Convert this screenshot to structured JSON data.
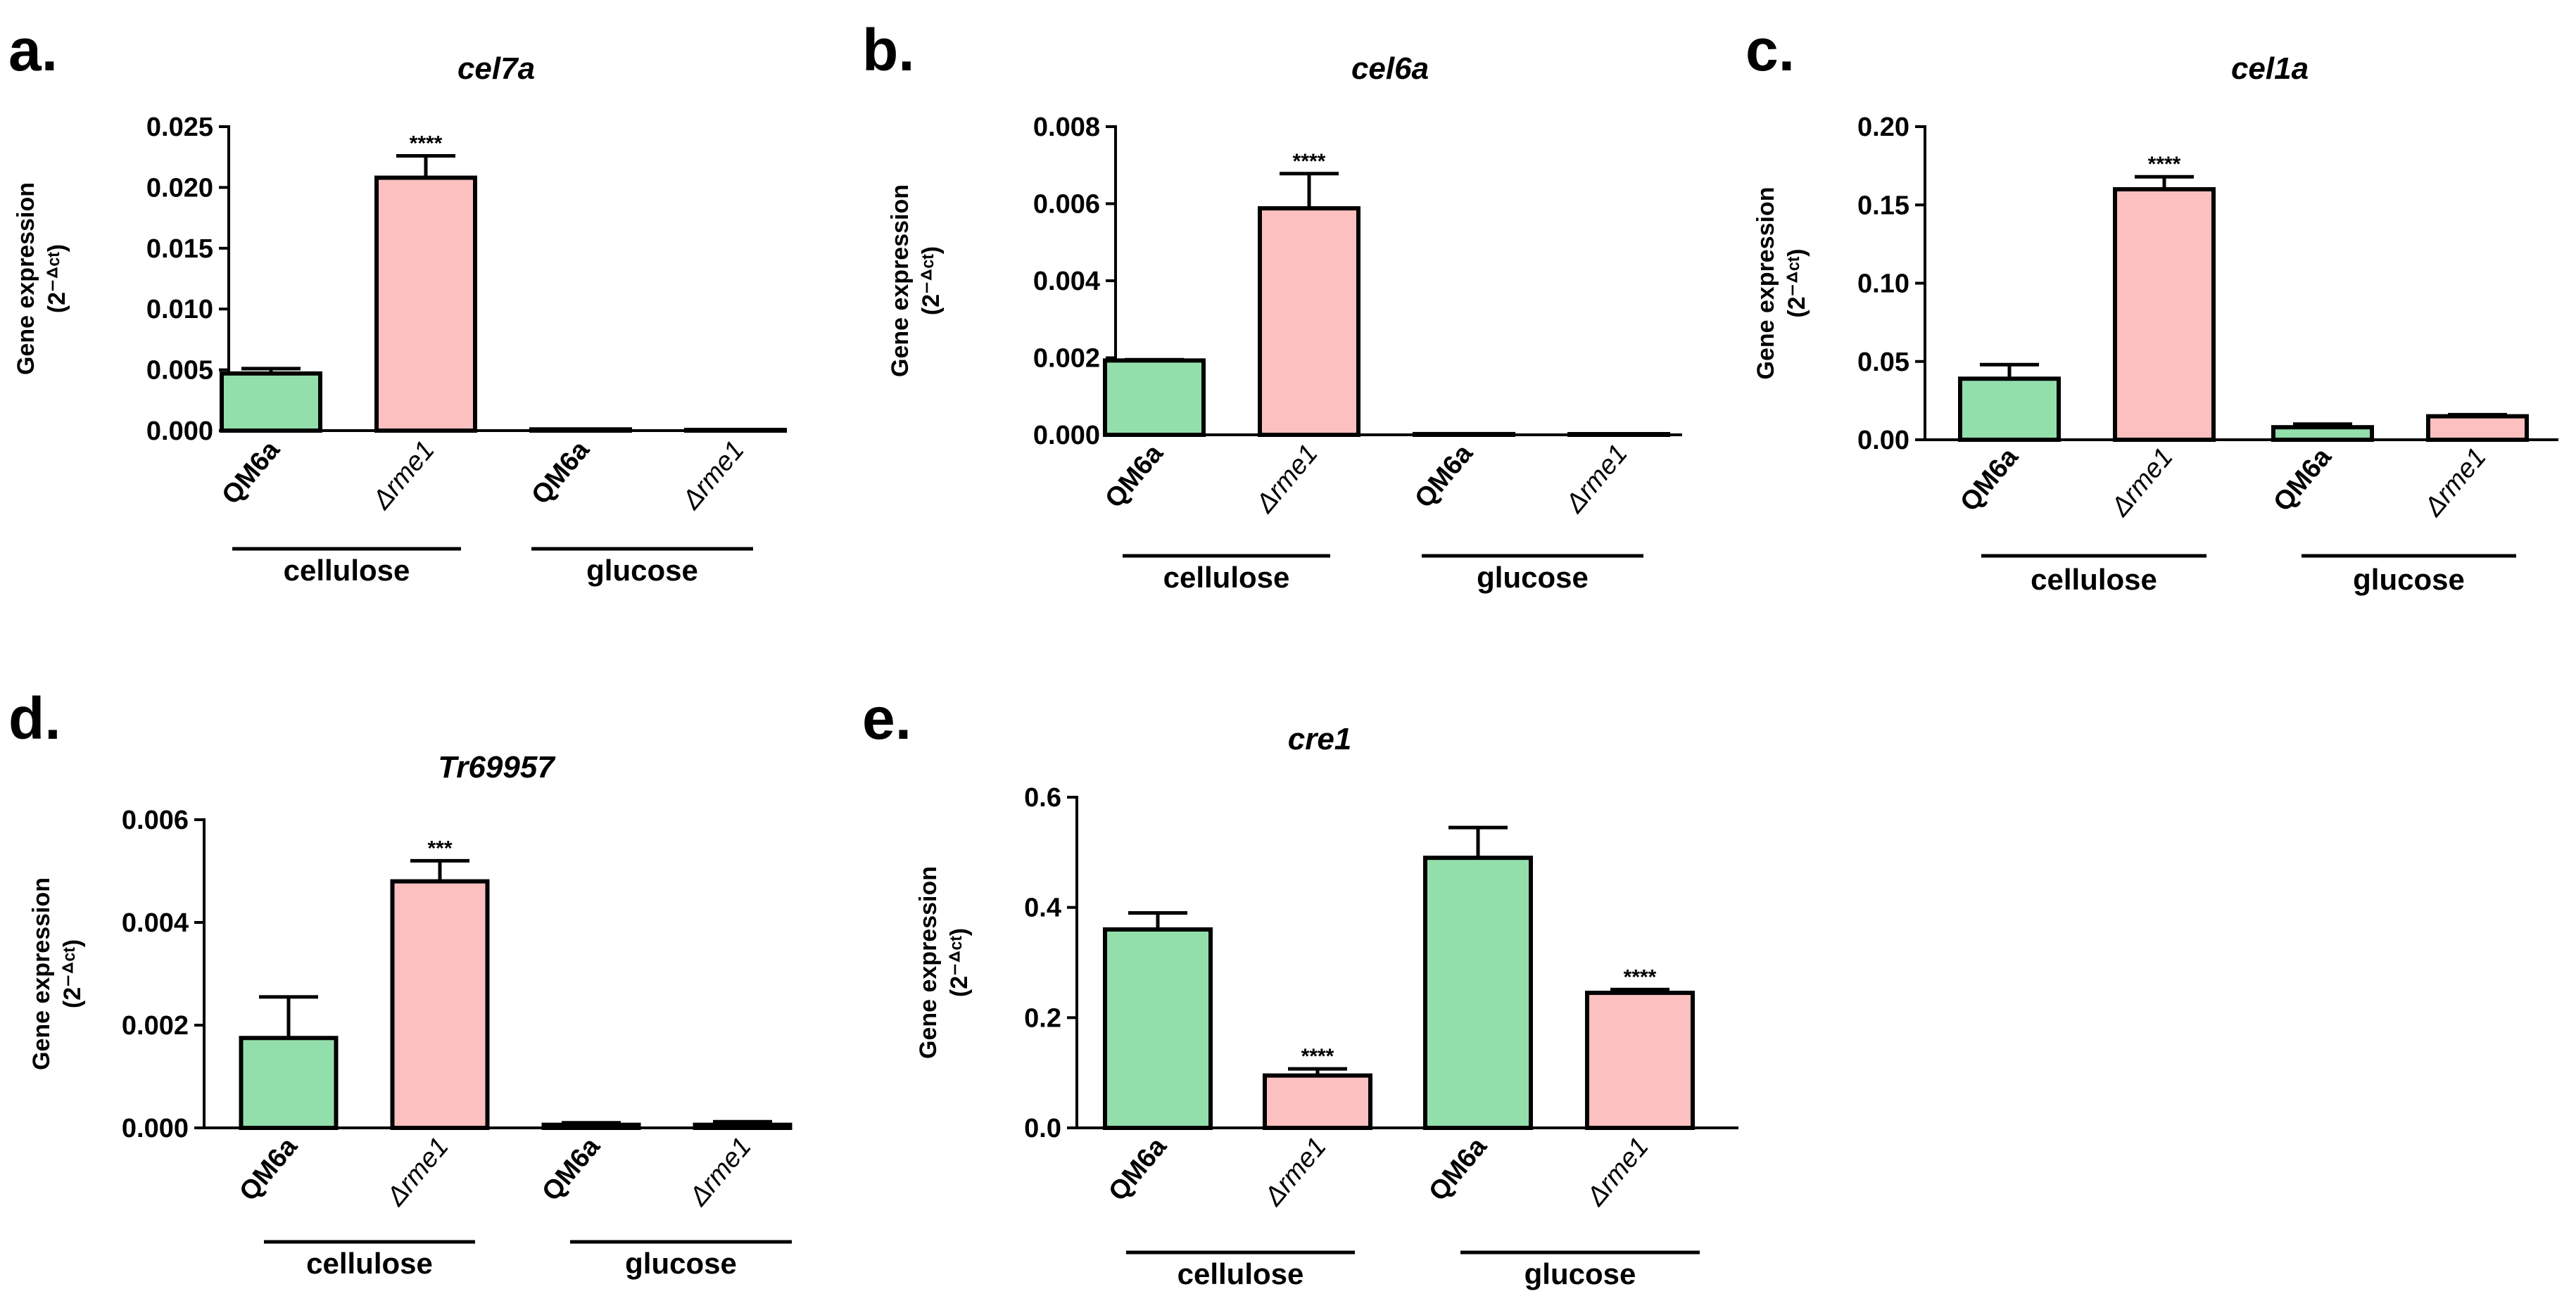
{
  "colors": {
    "wildtype": "#93dfab",
    "mutant": "#fdc0c0",
    "stroke": "#000000"
  },
  "chart_data": [
    {
      "panel": "a.",
      "type": "bar",
      "title": "cel7a",
      "ylabel": [
        "Gene expression",
        "(2⁻ᐞᶜᵗ)"
      ],
      "ylim": [
        0,
        0.025
      ],
      "yticks": [
        "0.000",
        "0.005",
        "0.010",
        "0.015",
        "0.020",
        "0.025"
      ],
      "categories": [
        "QM6a",
        "Δrme1",
        "QM6a",
        "Δrme1"
      ],
      "values": [
        0.0047,
        0.0208,
        0.0001,
        0.0
      ],
      "errors": [
        0.0004,
        0.0018,
        0.0,
        0.0
      ],
      "significance": [
        "",
        "****",
        "",
        ""
      ],
      "groups": [
        "cellulose",
        "glucose"
      ]
    },
    {
      "panel": "b.",
      "type": "bar",
      "title": "cel6a",
      "ylabel": [
        "Gene expression",
        "(2⁻ᐞᶜᵗ)"
      ],
      "ylim": [
        0,
        0.008
      ],
      "yticks": [
        "0.000",
        "0.002",
        "0.004",
        "0.006",
        "0.008"
      ],
      "categories": [
        "QM6a",
        "Δrme1",
        "QM6a",
        "Δrme1"
      ],
      "values": [
        0.00193,
        0.00588,
        2e-05,
        0.0
      ],
      "errors": [
        2e-05,
        0.0009,
        0.0,
        0.0
      ],
      "significance": [
        "",
        "****",
        "",
        ""
      ],
      "groups": [
        "cellulose",
        "glucose"
      ]
    },
    {
      "panel": "c.",
      "type": "bar",
      "title": "cel1a",
      "ylabel": [
        "Gene expression",
        "(2⁻ᐞᶜᵗ)"
      ],
      "ylim": [
        0,
        0.2
      ],
      "yticks": [
        "0.00",
        "0.05",
        "0.10",
        "0.15",
        "0.20"
      ],
      "categories": [
        "QM6a",
        "Δrme1",
        "QM6a",
        "Δrme1"
      ],
      "values": [
        0.039,
        0.16,
        0.008,
        0.015
      ],
      "errors": [
        0.009,
        0.008,
        0.002,
        0.001
      ],
      "significance": [
        "",
        "****",
        "",
        ""
      ],
      "groups": [
        "cellulose",
        "glucose"
      ]
    },
    {
      "panel": "d.",
      "type": "bar",
      "title": "Tr69957",
      "ylabel": [
        "Gene expression",
        "(2⁻ᐞᶜᵗ)"
      ],
      "ylim": [
        0,
        0.006
      ],
      "yticks": [
        "0.000",
        "0.002",
        "0.004",
        "0.006"
      ],
      "categories": [
        "QM6a",
        "Δrme1",
        "QM6a",
        "Δrme1"
      ],
      "values": [
        0.00175,
        0.0048,
        6e-05,
        6e-05
      ],
      "errors": [
        0.0008,
        0.0004,
        4e-05,
        6e-05
      ],
      "significance": [
        "",
        "***",
        "",
        ""
      ],
      "groups": [
        "cellulose",
        "glucose"
      ]
    },
    {
      "panel": "e.",
      "type": "bar",
      "title": "cre1",
      "ylabel": [
        "Gene expression",
        "(2⁻ᐞᶜᵗ)"
      ],
      "ylim": [
        0,
        0.6
      ],
      "yticks": [
        "0.0",
        "0.2",
        "0.4",
        "0.6"
      ],
      "categories": [
        "QM6a",
        "Δrme1",
        "QM6a",
        "Δrme1"
      ],
      "values": [
        0.36,
        0.095,
        0.49,
        0.245
      ],
      "errors": [
        0.03,
        0.012,
        0.055,
        0.006
      ],
      "significance": [
        "",
        "****",
        "",
        "****"
      ],
      "groups": [
        "cellulose",
        "glucose"
      ]
    }
  ]
}
